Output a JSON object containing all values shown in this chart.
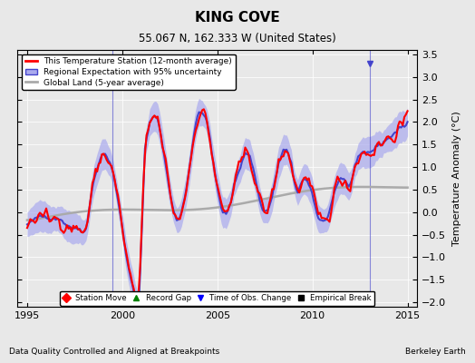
{
  "title": "KING COVE",
  "subtitle": "55.067 N, 162.333 W (United States)",
  "ylabel": "Temperature Anomaly (°C)",
  "xlabel_left": "Data Quality Controlled and Aligned at Breakpoints",
  "xlabel_right": "Berkeley Earth",
  "ylim": [
    -2.1,
    3.6
  ],
  "xlim": [
    1994.5,
    2015.5
  ],
  "yticks": [
    -2,
    -1.5,
    -1,
    -0.5,
    0,
    0.5,
    1,
    1.5,
    2,
    2.5,
    3,
    3.5
  ],
  "xticks": [
    1995,
    2000,
    2005,
    2010,
    2015
  ],
  "background_color": "#e8e8e8",
  "plot_bg_color": "#e8e8e8",
  "legend_entries": [
    "This Temperature Station (12-month average)",
    "Regional Expectation with 95% uncertainty",
    "Global Land (5-year average)"
  ],
  "marker_legend": [
    {
      "label": "Station Move",
      "color": "red",
      "marker": "D"
    },
    {
      "label": "Record Gap",
      "color": "green",
      "marker": "^"
    },
    {
      "label": "Time of Obs. Change",
      "color": "blue",
      "marker": "v"
    },
    {
      "label": "Empirical Break",
      "color": "black",
      "marker": "s"
    }
  ],
  "regional_color": "#4444cc",
  "regional_fill_color": "#aaaaee",
  "station_color": "red",
  "global_color": "#aaaaaa",
  "time_obs_change_years": [
    1999.5,
    2013.0
  ]
}
